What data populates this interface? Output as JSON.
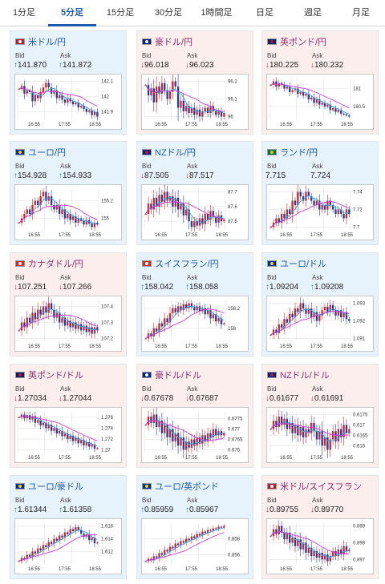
{
  "tabs": [
    "1分足",
    "5分足",
    "15分足",
    "30分足",
    "1時間足",
    "日足",
    "週足",
    "月足"
  ],
  "active_tab": 1,
  "labels": {
    "bid": "Bid",
    "ask": "Ask"
  },
  "colors": {
    "accent": "#1d5aa8",
    "up": "#1a7fd0",
    "down": "#d32f2f",
    "ma": "#d23ad6",
    "candle_up": "#d62728",
    "candle_down": "#1f3fa5"
  },
  "x_ticks": [
    "16:55",
    "17:55",
    "18:55"
  ],
  "pairs": [
    {
      "name": "米ドル/円",
      "flag": "us-jp",
      "trend": "up",
      "dir": "up",
      "bid": "141.870",
      "ask": "141.872",
      "yticks": [
        "142.1",
        "142",
        "141.9"
      ],
      "series": [
        142.05,
        142.07,
        142.02,
        142.04,
        142.03,
        141.97,
        142.01,
        141.99,
        142.03,
        142.06,
        142.09,
        142.06,
        142.02,
        142.04,
        141.99,
        142.01,
        141.98,
        141.96,
        141.99,
        141.97,
        141.95,
        141.96,
        141.93,
        141.94,
        141.92,
        141.9,
        141.91,
        141.88,
        141.9,
        141.87
      ]
    },
    {
      "name": "豪ドル/円",
      "flag": "au-jp",
      "trend": "down",
      "dir": "down",
      "bid": "96.018",
      "ask": "96.023",
      "yticks": [
        "96.2",
        "96.1",
        "96"
      ],
      "series": [
        96.18,
        96.12,
        96.16,
        96.08,
        96.17,
        96.13,
        96.19,
        96.15,
        96.1,
        96.14,
        96.2,
        96.17,
        96.05,
        96.09,
        96.03,
        96.06,
        96.02,
        96.05,
        96.01,
        96.04,
        96.0,
        96.03,
        96.05,
        96.02,
        96.06,
        96.03,
        96.01,
        96.03,
        96.0,
        96.02
      ]
    },
    {
      "name": "英ポンド/円",
      "flag": "gb-jp",
      "trend": "down",
      "dir": "down",
      "bid": "180.225",
      "ask": "180.232",
      "yticks": [
        "181",
        "180.5"
      ],
      "series": [
        181.1,
        181.2,
        181.05,
        181.15,
        181.1,
        181.0,
        181.05,
        180.9,
        180.95,
        181.0,
        180.85,
        180.9,
        180.8,
        180.85,
        180.7,
        180.75,
        180.6,
        180.7,
        180.55,
        180.6,
        180.5,
        180.55,
        180.4,
        180.45,
        180.35,
        180.4,
        180.3,
        180.28,
        180.25,
        180.22
      ]
    },
    {
      "name": "ユーロ/円",
      "flag": "eu-jp",
      "trend": "up",
      "dir": "up",
      "bid": "154.928",
      "ask": "154.933",
      "yticks": [
        "155.2",
        "155"
      ],
      "series": [
        154.95,
        155.0,
        155.05,
        155.1,
        155.05,
        155.15,
        155.2,
        155.15,
        155.25,
        155.3,
        155.2,
        155.25,
        155.15,
        155.1,
        155.15,
        155.05,
        155.1,
        155.0,
        155.05,
        154.98,
        155.02,
        154.95,
        155.0,
        154.97,
        154.93,
        154.98,
        154.94,
        154.9,
        154.95,
        154.93
      ]
    },
    {
      "name": "NZドル/円",
      "flag": "nz-jp",
      "trend": "up",
      "dir": "down",
      "bid": "87.505",
      "ask": "87.517",
      "yticks": [
        "87.7",
        "87.6",
        "87.5"
      ],
      "series": [
        87.55,
        87.62,
        87.58,
        87.66,
        87.6,
        87.68,
        87.63,
        87.7,
        87.64,
        87.67,
        87.6,
        87.66,
        87.58,
        87.62,
        87.54,
        87.58,
        87.5,
        87.46,
        87.5,
        87.47,
        87.52,
        87.48,
        87.55,
        87.51,
        87.57,
        87.53,
        87.49,
        87.54,
        87.5,
        87.51
      ]
    },
    {
      "name": "ランド/円",
      "flag": "za-jp",
      "trend": "up",
      "dir": "none",
      "bid": "7.715",
      "ask": "7.724",
      "yticks": [
        "7.74",
        "7.72",
        "7.7"
      ],
      "series": [
        7.7,
        7.705,
        7.71,
        7.705,
        7.715,
        7.71,
        7.72,
        7.715,
        7.73,
        7.725,
        7.74,
        7.735,
        7.73,
        7.74,
        7.735,
        7.73,
        7.725,
        7.73,
        7.72,
        7.725,
        7.72,
        7.73,
        7.725,
        7.72,
        7.715,
        7.72,
        7.715,
        7.71,
        7.72,
        7.715
      ]
    },
    {
      "name": "カナダドル/円",
      "flag": "ca-jp",
      "trend": "down",
      "dir": "down",
      "bid": "107.251",
      "ask": "107.266",
      "yticks": [
        "107.4",
        "107.3",
        "107.2"
      ],
      "series": [
        107.25,
        107.3,
        107.27,
        107.33,
        107.3,
        107.36,
        107.32,
        107.38,
        107.35,
        107.4,
        107.36,
        107.42,
        107.38,
        107.33,
        107.36,
        107.3,
        107.33,
        107.28,
        107.31,
        107.27,
        107.3,
        107.26,
        107.29,
        107.25,
        107.28,
        107.24,
        107.27,
        107.23,
        107.27,
        107.25
      ]
    },
    {
      "name": "スイスフラン/円",
      "flag": "ch-jp",
      "trend": "up",
      "dir": "up",
      "bid": "158.042",
      "ask": "158.058",
      "yticks": [
        "158.2",
        "158"
      ],
      "series": [
        157.9,
        157.95,
        157.92,
        158.0,
        157.97,
        158.05,
        158.02,
        158.1,
        158.06,
        158.15,
        158.2,
        158.16,
        158.22,
        158.18,
        158.24,
        158.2,
        158.25,
        158.21,
        158.18,
        158.22,
        158.17,
        158.2,
        158.14,
        158.18,
        158.1,
        158.14,
        158.07,
        158.1,
        158.04,
        158.05
      ]
    },
    {
      "name": "ユーロ/ドル",
      "flag": "eu-us",
      "trend": "up",
      "dir": "up",
      "bid": "1.09204",
      "ask": "1.09208",
      "yticks": [
        "1.093",
        "1.092",
        "1.091"
      ],
      "series": [
        1.0912,
        1.0915,
        1.0913,
        1.0918,
        1.0916,
        1.0921,
        1.0919,
        1.0924,
        1.0922,
        1.0927,
        1.0925,
        1.093,
        1.0927,
        1.0924,
        1.0927,
        1.0922,
        1.0925,
        1.092,
        1.0923,
        1.0926,
        1.0928,
        1.0925,
        1.0929,
        1.0926,
        1.0923,
        1.0926,
        1.0922,
        1.0925,
        1.0921,
        1.092
      ]
    },
    {
      "name": "英ポンド/ドル",
      "flag": "gb-us",
      "trend": "down",
      "dir": "down",
      "bid": "1.27034",
      "ask": "1.27044",
      "yticks": [
        "1.276",
        "1.274",
        "1.272",
        "1.27"
      ],
      "series": [
        1.276,
        1.2765,
        1.2758,
        1.2764,
        1.2756,
        1.2762,
        1.275,
        1.2755,
        1.2745,
        1.275,
        1.274,
        1.2746,
        1.2735,
        1.274,
        1.273,
        1.2735,
        1.2725,
        1.273,
        1.272,
        1.2726,
        1.2716,
        1.2722,
        1.2712,
        1.2718,
        1.2708,
        1.2714,
        1.2706,
        1.271,
        1.2702,
        1.2703
      ]
    },
    {
      "name": "豪ドル/ドル",
      "flag": "au-us",
      "trend": "down",
      "dir": "down",
      "bid": "0.67678",
      "ask": "0.67687",
      "yticks": [
        "0.6775",
        "0.677",
        "0.6765",
        "0.676"
      ],
      "series": [
        0.6772,
        0.6776,
        0.6773,
        0.6777,
        0.6771,
        0.6774,
        0.6768,
        0.6772,
        0.6766,
        0.677,
        0.6764,
        0.6768,
        0.6762,
        0.6766,
        0.676,
        0.6764,
        0.6761,
        0.6765,
        0.6762,
        0.6766,
        0.6763,
        0.6767,
        0.6764,
        0.6768,
        0.6766,
        0.677,
        0.6767,
        0.6769,
        0.6767,
        0.6768
      ]
    },
    {
      "name": "NZドル/ドル",
      "flag": "nz-us",
      "trend": "down",
      "dir": "down",
      "bid": "0.61677",
      "ask": "0.61691",
      "yticks": [
        "0.6175",
        "0.617",
        "0.6165",
        "0.616"
      ],
      "series": [
        0.6168,
        0.6172,
        0.6169,
        0.6174,
        0.617,
        0.6173,
        0.6168,
        0.6171,
        0.6166,
        0.617,
        0.6165,
        0.6169,
        0.6164,
        0.6168,
        0.6166,
        0.6171,
        0.6167,
        0.6163,
        0.6167,
        0.616,
        0.6164,
        0.6158,
        0.6163,
        0.6167,
        0.6162,
        0.6168,
        0.6164,
        0.617,
        0.6166,
        0.6168
      ]
    },
    {
      "name": "ユーロ/豪ドル",
      "flag": "eu-au",
      "trend": "up",
      "dir": "up",
      "bid": "1.61344",
      "ask": "1.61358",
      "yticks": [
        "1.616",
        "1.614",
        "1.612"
      ],
      "series": [
        1.6105,
        1.611,
        1.6108,
        1.6115,
        1.6112,
        1.612,
        1.6117,
        1.6125,
        1.6122,
        1.613,
        1.6127,
        1.6135,
        1.6132,
        1.614,
        1.6137,
        1.6145,
        1.6142,
        1.615,
        1.6147,
        1.6155,
        1.6152,
        1.6158,
        1.6154,
        1.6148,
        1.6143,
        1.6147,
        1.6138,
        1.6142,
        1.6133,
        1.6134
      ]
    },
    {
      "name": "ユーロ/英ポンド",
      "flag": "eu-gb",
      "trend": "up",
      "dir": "up",
      "bid": "0.85959",
      "ask": "0.85967",
      "yticks": [
        "0.858",
        "0.856"
      ],
      "series": [
        0.8552,
        0.8555,
        0.8553,
        0.8558,
        0.8556,
        0.8562,
        0.856,
        0.8566,
        0.8564,
        0.857,
        0.8568,
        0.8574,
        0.8572,
        0.8577,
        0.8575,
        0.858,
        0.8578,
        0.8583,
        0.8581,
        0.8586,
        0.8584,
        0.8589,
        0.8587,
        0.8591,
        0.859,
        0.8593,
        0.8592,
        0.8595,
        0.8594,
        0.8596
      ]
    },
    {
      "name": "米ドル/スイスフラン",
      "flag": "us-ch",
      "trend": "down",
      "dir": "down",
      "bid": "0.89755",
      "ask": "0.89770",
      "yticks": [
        "0.899",
        "0.898",
        "0.897"
      ],
      "series": [
        0.8984,
        0.8988,
        0.8985,
        0.899,
        0.8986,
        0.8982,
        0.8986,
        0.898,
        0.8983,
        0.8978,
        0.8982,
        0.8976,
        0.898,
        0.8974,
        0.8977,
        0.8972,
        0.8975,
        0.8971,
        0.8974,
        0.897,
        0.8973,
        0.8969,
        0.8972,
        0.8975,
        0.8972,
        0.8976,
        0.8973,
        0.8978,
        0.8975,
        0.8976
      ]
    }
  ]
}
